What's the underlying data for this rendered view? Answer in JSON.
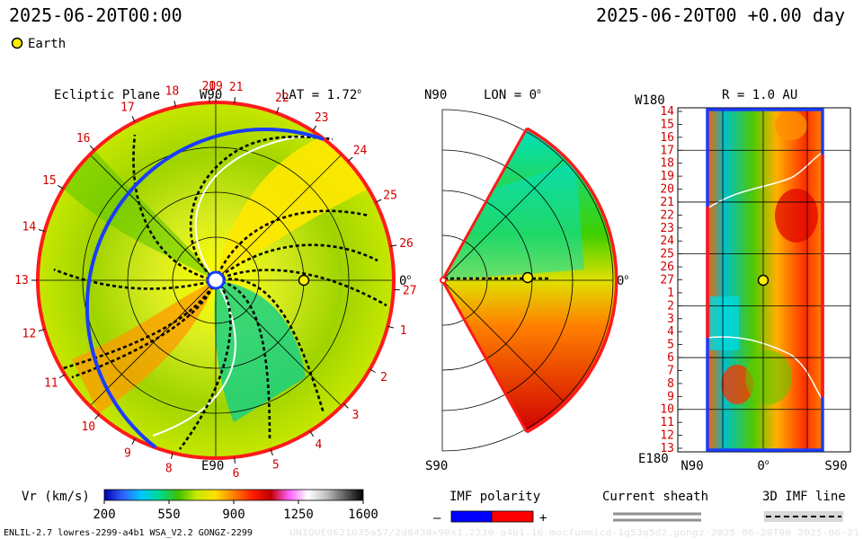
{
  "header": {
    "time_left": "2025-06-20T00:00",
    "time_right": "2025-06-20T00 +0.00 day"
  },
  "legend": {
    "earth_label": "Earth",
    "earth_color": "#ffee00"
  },
  "chart_data": [
    {
      "type": "heatmap",
      "panel": "ecliptic-plane",
      "title": "Ecliptic Plane",
      "lat_label": "LAT = 1.72",
      "lat_deg_symbol": "o",
      "top_label": "W90",
      "bottom_label": "E90",
      "right_label": "0",
      "right_deg_symbol": "o",
      "rotation_labels": [
        "20",
        "21",
        "22",
        "23",
        "24",
        "25",
        "26",
        "27",
        "1",
        "2",
        "3",
        "4",
        "5",
        "6",
        "8",
        "9",
        "10",
        "11",
        "12",
        "13",
        "14",
        "15",
        "16",
        "17",
        "18",
        "19"
      ],
      "rotation_angles": [
        92,
        84,
        70,
        57,
        42,
        26,
        11,
        -3,
        -15,
        -30,
        -44,
        -58,
        -72,
        -84,
        -104,
        -117,
        -131,
        -148,
        -164,
        -180,
        -196,
        -211,
        -227,
        -243,
        -257,
        -270
      ],
      "boundary_colors": {
        "positive": "#ff1a1a",
        "negative": "#1a3cff"
      },
      "earth_r_au": 1.0,
      "earth_lon_deg": 0
    },
    {
      "type": "heatmap",
      "panel": "meridional-plane",
      "top_label": "N90",
      "lon_label": "LON = 0",
      "lon_deg_symbol": "o",
      "bottom_label": "S90",
      "right_label": "0",
      "right_deg_symbol": "o"
    },
    {
      "type": "heatmap",
      "panel": "r-1au-map",
      "title": "R = 1.0 AU",
      "top_left_label": "W180",
      "bottom_left_label": "E180",
      "x_tick_labels": [
        "N90",
        "0",
        "S90"
      ],
      "x_zero_deg_symbol": "o",
      "y_tick_labels": [
        "14",
        "15",
        "16",
        "17",
        "18",
        "19",
        "20",
        "21",
        "22",
        "23",
        "24",
        "25",
        "26",
        "27",
        "1",
        "2",
        "3",
        "4",
        "5",
        "6",
        "7",
        "8",
        "9",
        "10",
        "11",
        "12",
        "13"
      ]
    }
  ],
  "colorbar": {
    "label": "Vr (km/s)",
    "ticks": [
      "200",
      "550",
      "900",
      "1250",
      "1600"
    ],
    "range": [
      200,
      1600
    ],
    "stops": [
      "#0000aa",
      "#3060ff",
      "#00c8ff",
      "#00d890",
      "#40c000",
      "#c8e800",
      "#ffe000",
      "#ff8000",
      "#ff2000",
      "#c00000",
      "#ff60ff",
      "#ffffff",
      "#c0c0c0",
      "#606060",
      "#000000"
    ]
  },
  "imf_polarity": {
    "label": "IMF polarity",
    "minus": "–",
    "plus": "+",
    "negative_color": "#0000ff",
    "positive_color": "#ff0000"
  },
  "current_sheath": {
    "label": "Current sheath"
  },
  "imf_line": {
    "label": "3D IMF line"
  },
  "footer": {
    "left": "ENLIL-2.7 lowres-2299-a4b1 WSA_V2.2 GONGZ-2299",
    "right": "UNIQUE0621035a57/2d8430x90x1.2230-a4b1.16-mocfunmicd-1g53q5d2.gongz-2025-06-20T00 2025-06-21"
  }
}
